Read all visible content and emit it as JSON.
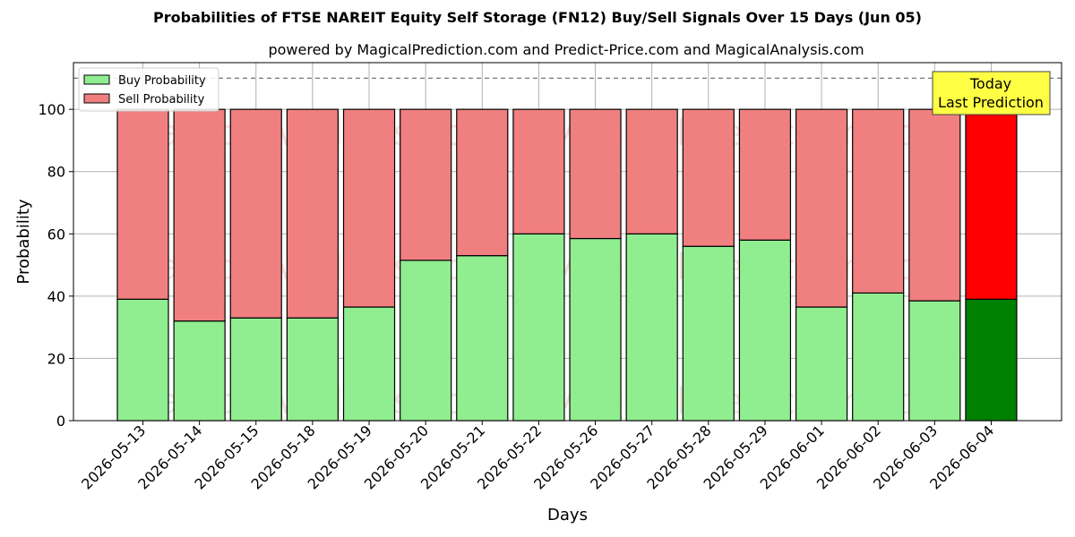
{
  "chart_data": {
    "type": "bar",
    "stacked": true,
    "title": "Probabilities of FTSE NAREIT Equity Self Storage (FN12) Buy/Sell Signals Over 15 Days (Jun 05)",
    "subtitle": "powered by MagicalPrediction.com and Predict-Price.com and MagicalAnalysis.com",
    "xlabel": "Days",
    "ylabel": "Probability",
    "ylim": [
      0,
      115
    ],
    "yticks": [
      0,
      20,
      40,
      60,
      80,
      100
    ],
    "reference_line": 110,
    "grid": true,
    "legend_position": "top-left",
    "categories": [
      "2026-05-13",
      "2026-05-14",
      "2026-05-15",
      "2026-05-18",
      "2026-05-19",
      "2026-05-20",
      "2026-05-21",
      "2026-05-22",
      "2026-05-26",
      "2026-05-27",
      "2026-05-28",
      "2026-05-29",
      "2026-06-01",
      "2026-06-02",
      "2026-06-03",
      "2026-06-04"
    ],
    "series": [
      {
        "name": "Buy Probability",
        "color": "#90ee90",
        "highlight_color": "#008000",
        "values": [
          39,
          32,
          33,
          33,
          36.5,
          51.5,
          53,
          60,
          58.5,
          60,
          56,
          58,
          36.5,
          41,
          38.5,
          39
        ]
      },
      {
        "name": "Sell Probability",
        "color": "#f08080",
        "highlight_color": "#ff0000",
        "values": [
          61,
          68,
          67,
          67,
          63.5,
          48.5,
          47,
          40,
          41.5,
          40,
          44,
          42,
          63.5,
          59,
          61.5,
          61
        ]
      }
    ],
    "highlight_index": 15,
    "annotation": {
      "lines": [
        "Today",
        "Last Prediction"
      ],
      "background": "#ffff44"
    },
    "watermarks": [
      "MagicalAnalysis.com",
      "MagicalPrediction.com"
    ]
  }
}
